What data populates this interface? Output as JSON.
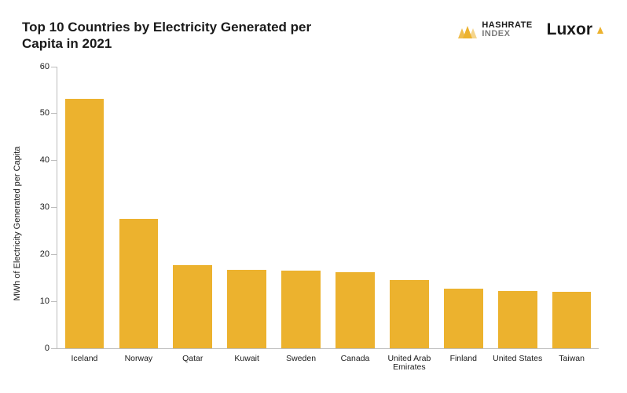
{
  "title": "Top 10 Countries by Electricity Generated per Capita in 2021",
  "logos": {
    "hashrate_top": "HASHRATE",
    "hashrate_bot": "INDEX",
    "luxor": "Luxor",
    "accent_color": "#ecb22e"
  },
  "chart": {
    "type": "bar",
    "ylabel": "MWh of Electricity Generated per Capita",
    "ylim": [
      0,
      60
    ],
    "ytick_step": 10,
    "yticks": [
      0,
      10,
      20,
      30,
      40,
      50,
      60
    ],
    "categories": [
      "Iceland",
      "Norway",
      "Qatar",
      "Kuwait",
      "Sweden",
      "Canada",
      "United Arab Emirates",
      "Finland",
      "United States",
      "Taiwan"
    ],
    "values": [
      53.0,
      27.5,
      17.6,
      16.6,
      16.4,
      16.2,
      14.4,
      12.6,
      12.2,
      11.9
    ],
    "bar_color": "#ecb22e",
    "bar_width": 0.72,
    "axis_color": "#bdbdbd",
    "background_color": "#ffffff",
    "title_fontsize": 17,
    "label_fontsize": 11,
    "tick_fontsize": 11
  }
}
